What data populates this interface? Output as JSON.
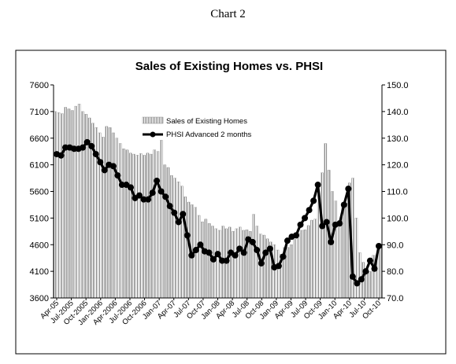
{
  "page": {
    "caption": "Chart 2"
  },
  "chart_data": {
    "type": "bar",
    "title": "Sales of Existing Homes vs. PHSI",
    "x_tick_labels": [
      "Apr-05",
      "Jul-2005",
      "Oct-2005",
      "Jan-2006",
      "Apr-2006",
      "Jul-2006",
      "Oct-2006",
      "Jan-07",
      "Apr-07",
      "Jul-07",
      "Oct-07",
      "Jan-08",
      "Apr-08",
      "Jul-08",
      "Oct-08",
      "Jan-09",
      "Apr-09",
      "Jul-09",
      "Oct-09",
      "Jan-10",
      "Apr-10",
      "Jul-10",
      "Oct-10"
    ],
    "y_left": {
      "ylim": [
        3600,
        7600
      ],
      "ticks": [
        3600,
        4100,
        4600,
        5100,
        5600,
        6100,
        6600,
        7100,
        7600
      ]
    },
    "y_right": {
      "ylim": [
        70.0,
        150.0
      ],
      "ticks": [
        "70.0",
        "80.0",
        "90.0",
        "100.0",
        "110.0",
        "120.0",
        "130.0",
        "140.0",
        "150.0"
      ]
    },
    "legend": {
      "placement": "top-center",
      "entries": [
        "Sales of Existing Homes",
        "PHSI Advanced 2 months"
      ]
    },
    "grid": false,
    "series": [
      {
        "name": "Sales of Existing Homes",
        "type": "bar",
        "axis": "left",
        "color": "#9a9a9a",
        "values": [
          7100,
          7080,
          7060,
          7180,
          7150,
          7120,
          7200,
          7240,
          7100,
          7050,
          6980,
          6880,
          6800,
          6700,
          6620,
          6820,
          6800,
          6700,
          6600,
          6500,
          6400,
          6380,
          6320,
          6300,
          6280,
          6310,
          6280,
          6320,
          6300,
          6380,
          6350,
          6560,
          6100,
          6050,
          5900,
          5850,
          5780,
          5700,
          5500,
          5400,
          5350,
          5300,
          5150,
          5030,
          5080,
          5000,
          4950,
          4900,
          4870,
          4950,
          4900,
          4930,
          4850,
          4900,
          4930,
          4870,
          4880,
          4850,
          5170,
          4950,
          4800,
          4780,
          4710,
          4650,
          4600,
          4500,
          4420,
          4550,
          4550,
          4600,
          4700,
          4820,
          4870,
          4880,
          4960,
          5060,
          5080,
          5550,
          5950,
          6500,
          6000,
          5600,
          5420,
          5050,
          5350,
          5380,
          5760,
          5850,
          5100,
          4450,
          4270,
          4080,
          4100,
          4400,
          4400,
          4550
        ]
      },
      {
        "name": "PHSI Advanced 2 months",
        "type": "line",
        "axis": "right",
        "color": "#000000",
        "values": [
          124.0,
          123.5,
          126.5,
          126.5,
          126.0,
          126.0,
          126.5,
          128.5,
          127.0,
          124.0,
          121.0,
          118.0,
          120.0,
          119.5,
          116.0,
          112.5,
          112.5,
          111.5,
          107.5,
          108.5,
          107.0,
          107.0,
          109.5,
          114.0,
          110.0,
          108.0,
          104.5,
          102.0,
          98.5,
          101.5,
          93.5,
          86.0,
          88.0,
          90.0,
          87.5,
          87.0,
          84.5,
          86.5,
          84.0,
          84.0,
          87.0,
          86.0,
          88.5,
          87.0,
          92.0,
          91.0,
          88.0,
          83.0,
          87.0,
          88.5,
          81.5,
          82.0,
          85.5,
          91.5,
          93.0,
          93.5,
          97.5,
          100.0,
          103.0,
          106.5,
          112.5,
          97.0,
          98.5,
          91.0,
          97.5,
          98.0,
          105.0,
          111.0,
          78.0,
          75.5,
          77.0,
          80.0,
          84.0,
          81.0,
          89.5
        ]
      }
    ]
  }
}
